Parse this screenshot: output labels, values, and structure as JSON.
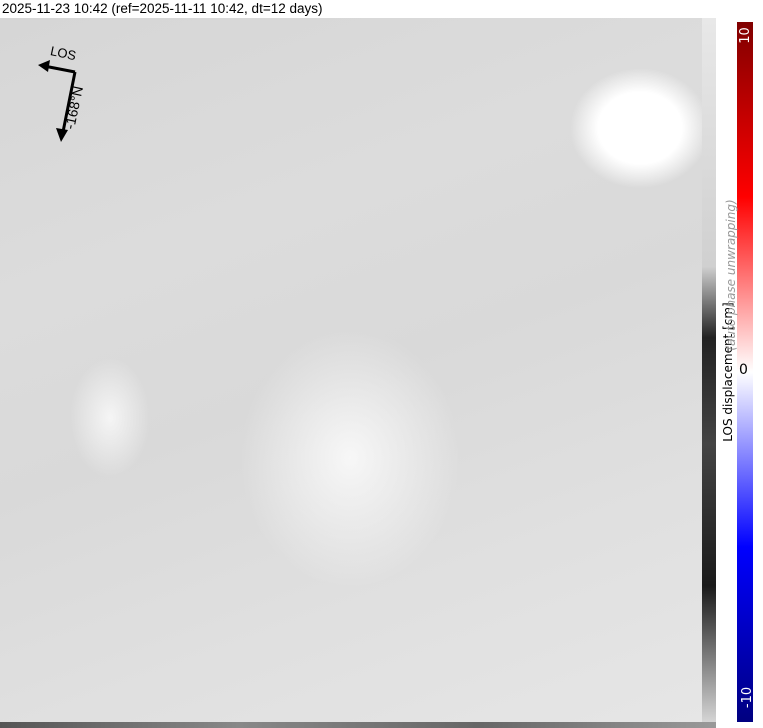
{
  "title": "2025-11-23 10:42 (ref=2025-11-11 10:42, dt=12 days)",
  "los_arrow": {
    "label": "LOS",
    "heading_label": "-168°N"
  },
  "colorbar": {
    "label": "LOS displacement [cm]",
    "note": "(auto phase unwrapping)",
    "max": "10",
    "mid": "0",
    "min": "-10",
    "colors": {
      "max": "#800000",
      "upper": "#ff0000",
      "mid": "#ffffff",
      "lower": "#0000ff",
      "min": "#000080"
    }
  }
}
